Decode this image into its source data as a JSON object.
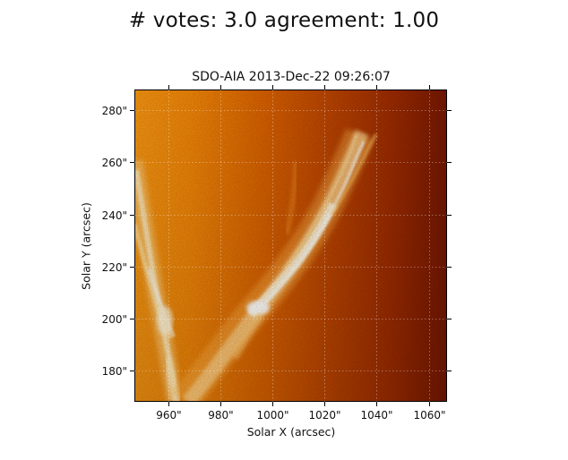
{
  "suptitle": "# votes: 3.0 agreement: 1.00",
  "plot": {
    "title": "SDO-AIA   2013-Dec-22 09:26:07",
    "xlabel": "Solar X (arcsec)",
    "ylabel": "Solar Y (arcsec)"
  },
  "chart_data": {
    "type": "heatmap",
    "title": "SDO-AIA   2013-Dec-22 09:26:07",
    "xlabel": "Solar X (arcsec)",
    "ylabel": "Solar Y (arcsec)",
    "x_ticks": [
      960,
      980,
      1000,
      1020,
      1040,
      1060
    ],
    "x_tick_labels": [
      "960\"",
      "980\"",
      "1000\"",
      "1020\"",
      "1040\"",
      "1060\""
    ],
    "y_ticks": [
      180,
      200,
      220,
      240,
      260,
      280
    ],
    "y_tick_labels": [
      "180\"",
      "200\"",
      "220\"",
      "240\"",
      "260\"",
      "280\""
    ],
    "xlim": [
      947,
      1067
    ],
    "ylim": [
      168,
      288
    ],
    "grid": true,
    "colormap": "sdoaia171 (orange-red)"
  },
  "colors": {
    "bright": "#fff3c8",
    "orange": "#ff8a00",
    "mid": "#d65a00",
    "dark": "#a02700",
    "darkest": "#6a1400"
  }
}
